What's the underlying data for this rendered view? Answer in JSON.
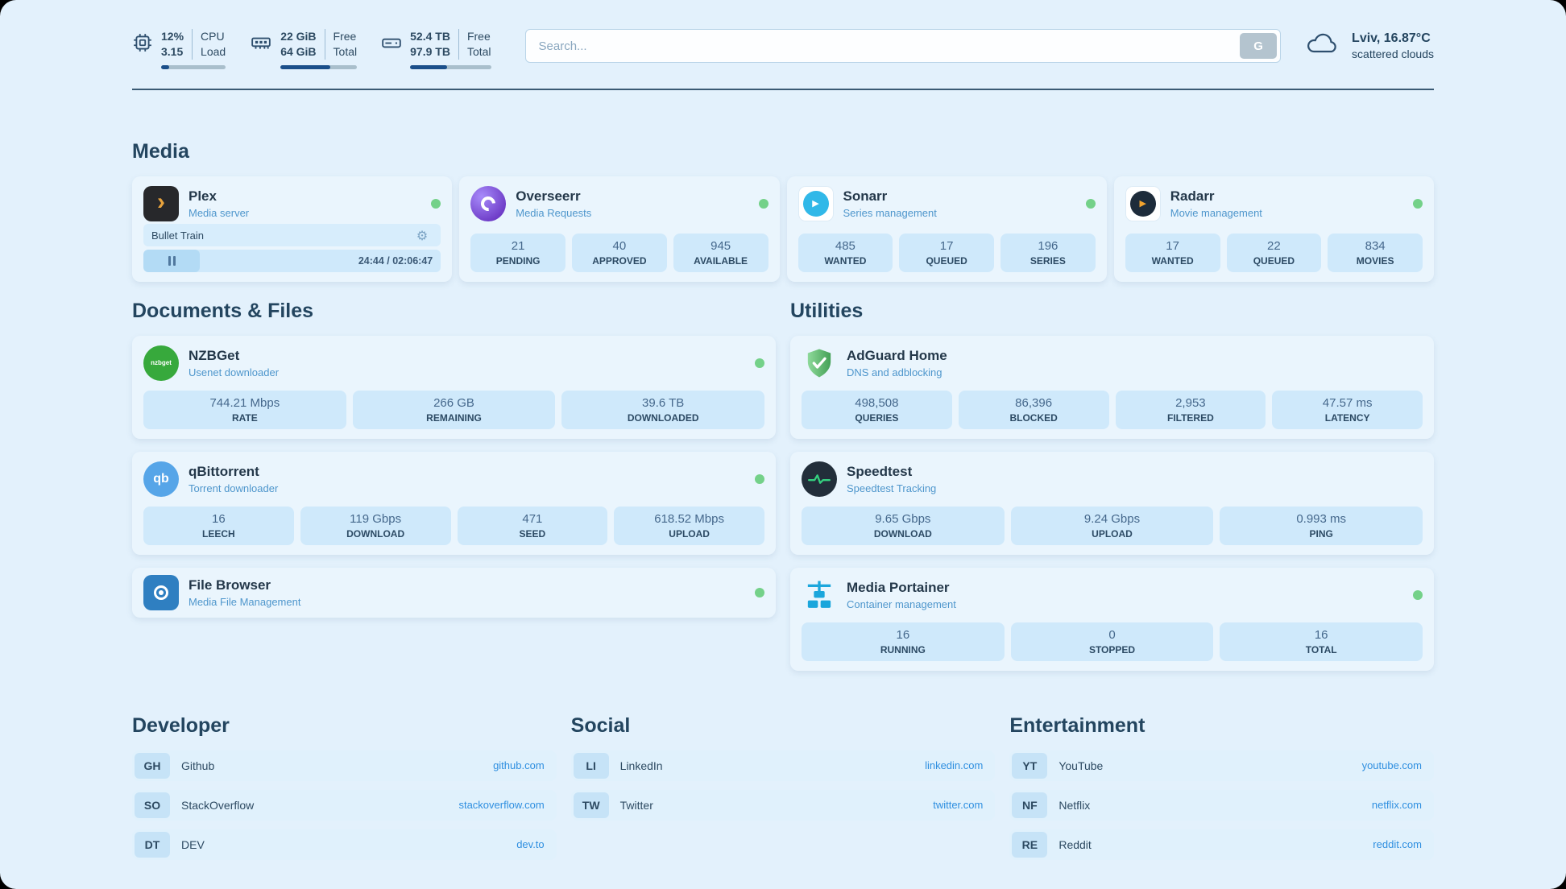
{
  "topbar": {
    "cpu": {
      "value": "12%",
      "sub": "3.15",
      "label_top": "CPU",
      "label_bottom": "Load",
      "progress": 12
    },
    "ram": {
      "value": "22 GiB",
      "sub": "64 GiB",
      "label_top": "Free",
      "label_bottom": "Total",
      "progress": 65
    },
    "disk": {
      "value": "52.4 TB",
      "sub": "97.9 TB",
      "label_top": "Free",
      "label_bottom": "Total",
      "progress": 46
    },
    "search": {
      "placeholder": "Search...",
      "button_label": "G"
    },
    "weather": {
      "location": "Lviv, 16.87°C",
      "condition": "scattered clouds"
    }
  },
  "sections": {
    "media": {
      "title": "Media"
    },
    "documents": {
      "title": "Documents & Files"
    },
    "utilities": {
      "title": "Utilities"
    },
    "developer": {
      "title": "Developer"
    },
    "social": {
      "title": "Social"
    },
    "entertainment": {
      "title": "Entertainment"
    }
  },
  "apps": {
    "plex": {
      "name": "Plex",
      "subtitle": "Media server",
      "now_playing": "Bullet Train",
      "time": "24:44 / 02:06:47",
      "progress": 19
    },
    "overseerr": {
      "name": "Overseerr",
      "subtitle": "Media Requests",
      "stats": [
        {
          "value": "21",
          "label": "PENDING"
        },
        {
          "value": "40",
          "label": "APPROVED"
        },
        {
          "value": "945",
          "label": "AVAILABLE"
        }
      ]
    },
    "sonarr": {
      "name": "Sonarr",
      "subtitle": "Series management",
      "stats": [
        {
          "value": "485",
          "label": "WANTED"
        },
        {
          "value": "17",
          "label": "QUEUED"
        },
        {
          "value": "196",
          "label": "SERIES"
        }
      ]
    },
    "radarr": {
      "name": "Radarr",
      "subtitle": "Movie management",
      "stats": [
        {
          "value": "17",
          "label": "WANTED"
        },
        {
          "value": "22",
          "label": "QUEUED"
        },
        {
          "value": "834",
          "label": "MOVIES"
        }
      ]
    },
    "nzbget": {
      "name": "NZBGet",
      "subtitle": "Usenet downloader",
      "stats": [
        {
          "value": "744.21 Mbps",
          "label": "RATE"
        },
        {
          "value": "266 GB",
          "label": "REMAINING"
        },
        {
          "value": "39.6 TB",
          "label": "DOWNLOADED"
        }
      ]
    },
    "qbittorrent": {
      "name": "qBittorrent",
      "subtitle": "Torrent downloader",
      "stats": [
        {
          "value": "16",
          "label": "LEECH"
        },
        {
          "value": "119 Gbps",
          "label": "DOWNLOAD"
        },
        {
          "value": "471",
          "label": "SEED"
        },
        {
          "value": "618.52 Mbps",
          "label": "UPLOAD"
        }
      ]
    },
    "filebrowser": {
      "name": "File Browser",
      "subtitle": "Media File Management"
    },
    "adguard": {
      "name": "AdGuard Home",
      "subtitle": "DNS and adblocking",
      "stats": [
        {
          "value": "498,508",
          "label": "QUERIES"
        },
        {
          "value": "86,396",
          "label": "BLOCKED"
        },
        {
          "value": "2,953",
          "label": "FILTERED"
        },
        {
          "value": "47.57 ms",
          "label": "LATENCY"
        }
      ]
    },
    "speedtest": {
      "name": "Speedtest",
      "subtitle": "Speedtest Tracking",
      "stats": [
        {
          "value": "9.65 Gbps",
          "label": "DOWNLOAD"
        },
        {
          "value": "9.24 Gbps",
          "label": "UPLOAD"
        },
        {
          "value": "0.993 ms",
          "label": "PING"
        }
      ]
    },
    "portainer": {
      "name": "Media Portainer",
      "subtitle": "Container management",
      "stats": [
        {
          "value": "16",
          "label": "RUNNING"
        },
        {
          "value": "0",
          "label": "STOPPED"
        },
        {
          "value": "16",
          "label": "TOTAL"
        }
      ]
    }
  },
  "bookmarks": {
    "developer": [
      {
        "abbr": "GH",
        "name": "Github",
        "url": "github.com"
      },
      {
        "abbr": "SO",
        "name": "StackOverflow",
        "url": "stackoverflow.com"
      },
      {
        "abbr": "DT",
        "name": "DEV",
        "url": "dev.to"
      }
    ],
    "social": [
      {
        "abbr": "LI",
        "name": "LinkedIn",
        "url": "linkedin.com"
      },
      {
        "abbr": "TW",
        "name": "Twitter",
        "url": "twitter.com"
      }
    ],
    "entertainment": [
      {
        "abbr": "YT",
        "name": "YouTube",
        "url": "youtube.com"
      },
      {
        "abbr": "NF",
        "name": "Netflix",
        "url": "netflix.com"
      },
      {
        "abbr": "RE",
        "name": "Reddit",
        "url": "reddit.com"
      }
    ]
  },
  "icons": {
    "plex_glyph": "›",
    "sonarr_glyph": "▶",
    "radarr_glyph": "▶",
    "nzbget_text": "nzbget",
    "qbittorrent_text": "qb",
    "gear_glyph": "⚙"
  },
  "colors": {
    "status_green": "#74d189",
    "accent_blue": "#2f8fe0",
    "progress_fill": "#1b4f8a",
    "page_background": "#e3f1fc"
  }
}
